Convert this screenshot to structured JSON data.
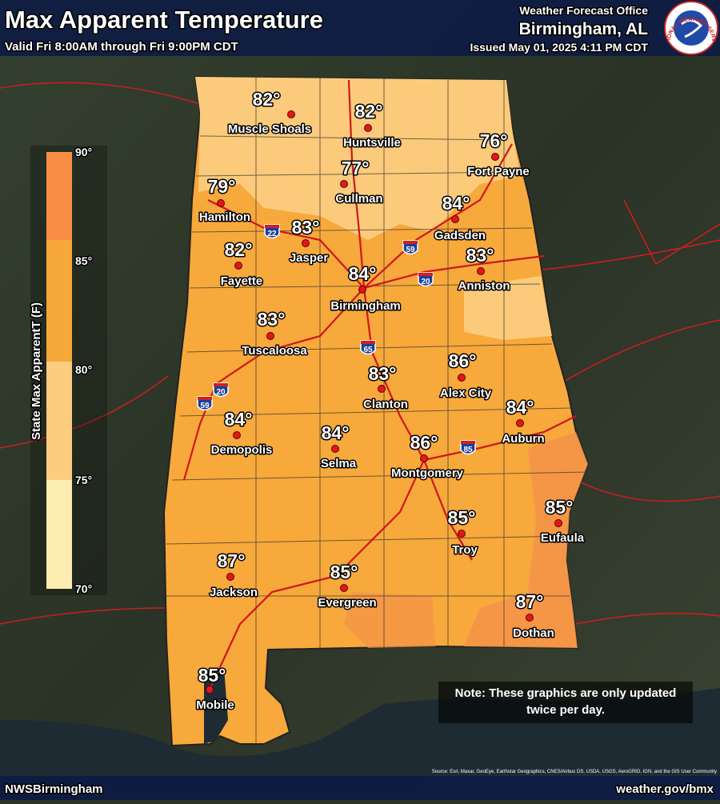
{
  "header": {
    "title": "Max Apparent Temperature",
    "subtitle": "Valid Fri 8:00AM through Fri 9:00PM CDT",
    "office_line": "Weather Forecast Office",
    "office": "Birmingham, AL",
    "issued": "Issued May 01, 2025 4:11 PM CDT",
    "logo": "NATIONAL WEATHER SERVICE"
  },
  "legend": {
    "title": "State Max ApparentT (F)",
    "ticks": [
      "90°",
      "85°",
      "80°",
      "75°",
      "70°"
    ]
  },
  "cities": [
    {
      "name": "Muscle Shoals",
      "temp": "82°"
    },
    {
      "name": "Huntsville",
      "temp": "82°"
    },
    {
      "name": "Fort Payne",
      "temp": "76°"
    },
    {
      "name": "Cullman",
      "temp": "77°"
    },
    {
      "name": "Hamilton",
      "temp": "79°"
    },
    {
      "name": "Gadsden",
      "temp": "84°"
    },
    {
      "name": "Jasper",
      "temp": "83°"
    },
    {
      "name": "Fayette",
      "temp": "82°"
    },
    {
      "name": "Anniston",
      "temp": "83°"
    },
    {
      "name": "Birmingham",
      "temp": "84°"
    },
    {
      "name": "Tuscaloosa",
      "temp": "83°"
    },
    {
      "name": "Alex City",
      "temp": "86°"
    },
    {
      "name": "Clanton",
      "temp": "83°"
    },
    {
      "name": "Auburn",
      "temp": "84°"
    },
    {
      "name": "Demopolis",
      "temp": "84°"
    },
    {
      "name": "Selma",
      "temp": "84°"
    },
    {
      "name": "Montgomery",
      "temp": "86°"
    },
    {
      "name": "Troy",
      "temp": "85°"
    },
    {
      "name": "Eufaula",
      "temp": "85°"
    },
    {
      "name": "Jackson",
      "temp": "87°"
    },
    {
      "name": "Evergreen",
      "temp": "85°"
    },
    {
      "name": "Dothan",
      "temp": "87°"
    },
    {
      "name": "Mobile",
      "temp": "85°"
    }
  ],
  "interstates": [
    "22",
    "59",
    "20",
    "65",
    "20",
    "59",
    "85"
  ],
  "note": "Note: These graphics are only updated twice per day.",
  "source": "Source: Esri, Maxar, GeoEye, Earthstar Geographics, CNES/Airbus DS, USDA, USGS, AeroGRID, IGN, and the GIS User Community",
  "footer": {
    "left": "NWSBirmingham",
    "right": "weather.gov/bmx"
  }
}
